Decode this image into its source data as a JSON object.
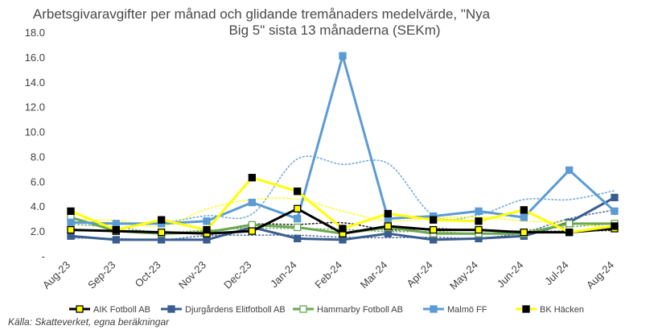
{
  "chart_data": {
    "type": "line",
    "title": "Arbetsgivaravgifter per månad och glidande tremånaders medelvärde, \"Nya Big 5\" sista 13 månaderna (SEKm)",
    "title_lines": [
      "Arbetsgivaravgifter per månad och glidande tremånaders medelvärde, \"Nya",
      "Big 5\" sista 13 månaderna (SEKm)"
    ],
    "xlabel": "",
    "ylabel": "",
    "categories": [
      "Aug-23",
      "Sep-23",
      "Oct-23",
      "Nov-23",
      "Dec-23",
      "Jan-24",
      "Feb-24",
      "Mar-24",
      "Apr-24",
      "May-24",
      "Jun-24",
      "Jul-24",
      "Aug-24"
    ],
    "ylim": [
      0,
      18
    ],
    "yticks": [
      "-",
      "2.0",
      "4.0",
      "6.0",
      "8.0",
      "10.0",
      "12.0",
      "14.0",
      "16.0",
      "18.0"
    ],
    "grid": false,
    "legend_position": "bottom",
    "series": [
      {
        "name": "AIK Fotboll AB",
        "color": "#000000",
        "marker": "#ffff00",
        "values": [
          2.1,
          2.0,
          1.9,
          1.8,
          2.0,
          3.8,
          1.8,
          2.4,
          2.1,
          2.1,
          1.9,
          1.9,
          2.2
        ]
      },
      {
        "name": "Djurgårdens Elitfotboll AB",
        "color": "#3a5d8f",
        "marker": "#3a5d8f",
        "values": [
          1.6,
          1.3,
          1.3,
          1.3,
          2.3,
          1.4,
          1.3,
          1.8,
          1.3,
          1.4,
          1.6,
          2.7,
          4.7
        ]
      },
      {
        "name": "Hammarby Fotboll AB",
        "color": "#6aa84f",
        "marker": "#ffffff",
        "values": [
          3.1,
          2.0,
          1.8,
          1.9,
          2.5,
          2.3,
          1.8,
          2.3,
          1.8,
          1.8,
          1.8,
          2.6,
          2.6
        ]
      },
      {
        "name": "Malmö FF",
        "color": "#5b9bd5",
        "marker": "#5b9bd5",
        "values": [
          2.7,
          2.6,
          2.6,
          2.8,
          4.3,
          3.0,
          16.1,
          3.0,
          3.2,
          3.6,
          3.1,
          6.9,
          3.6
        ]
      },
      {
        "name": "BK Häcken",
        "color": "#ffff00",
        "marker": "#000000",
        "values": [
          3.6,
          2.1,
          2.9,
          2.1,
          6.3,
          5.2,
          2.2,
          3.4,
          2.9,
          2.8,
          3.7,
          1.9,
          2.4
        ]
      }
    ]
  },
  "source_text": "Källa: Skatteverket, egna beräkningar"
}
